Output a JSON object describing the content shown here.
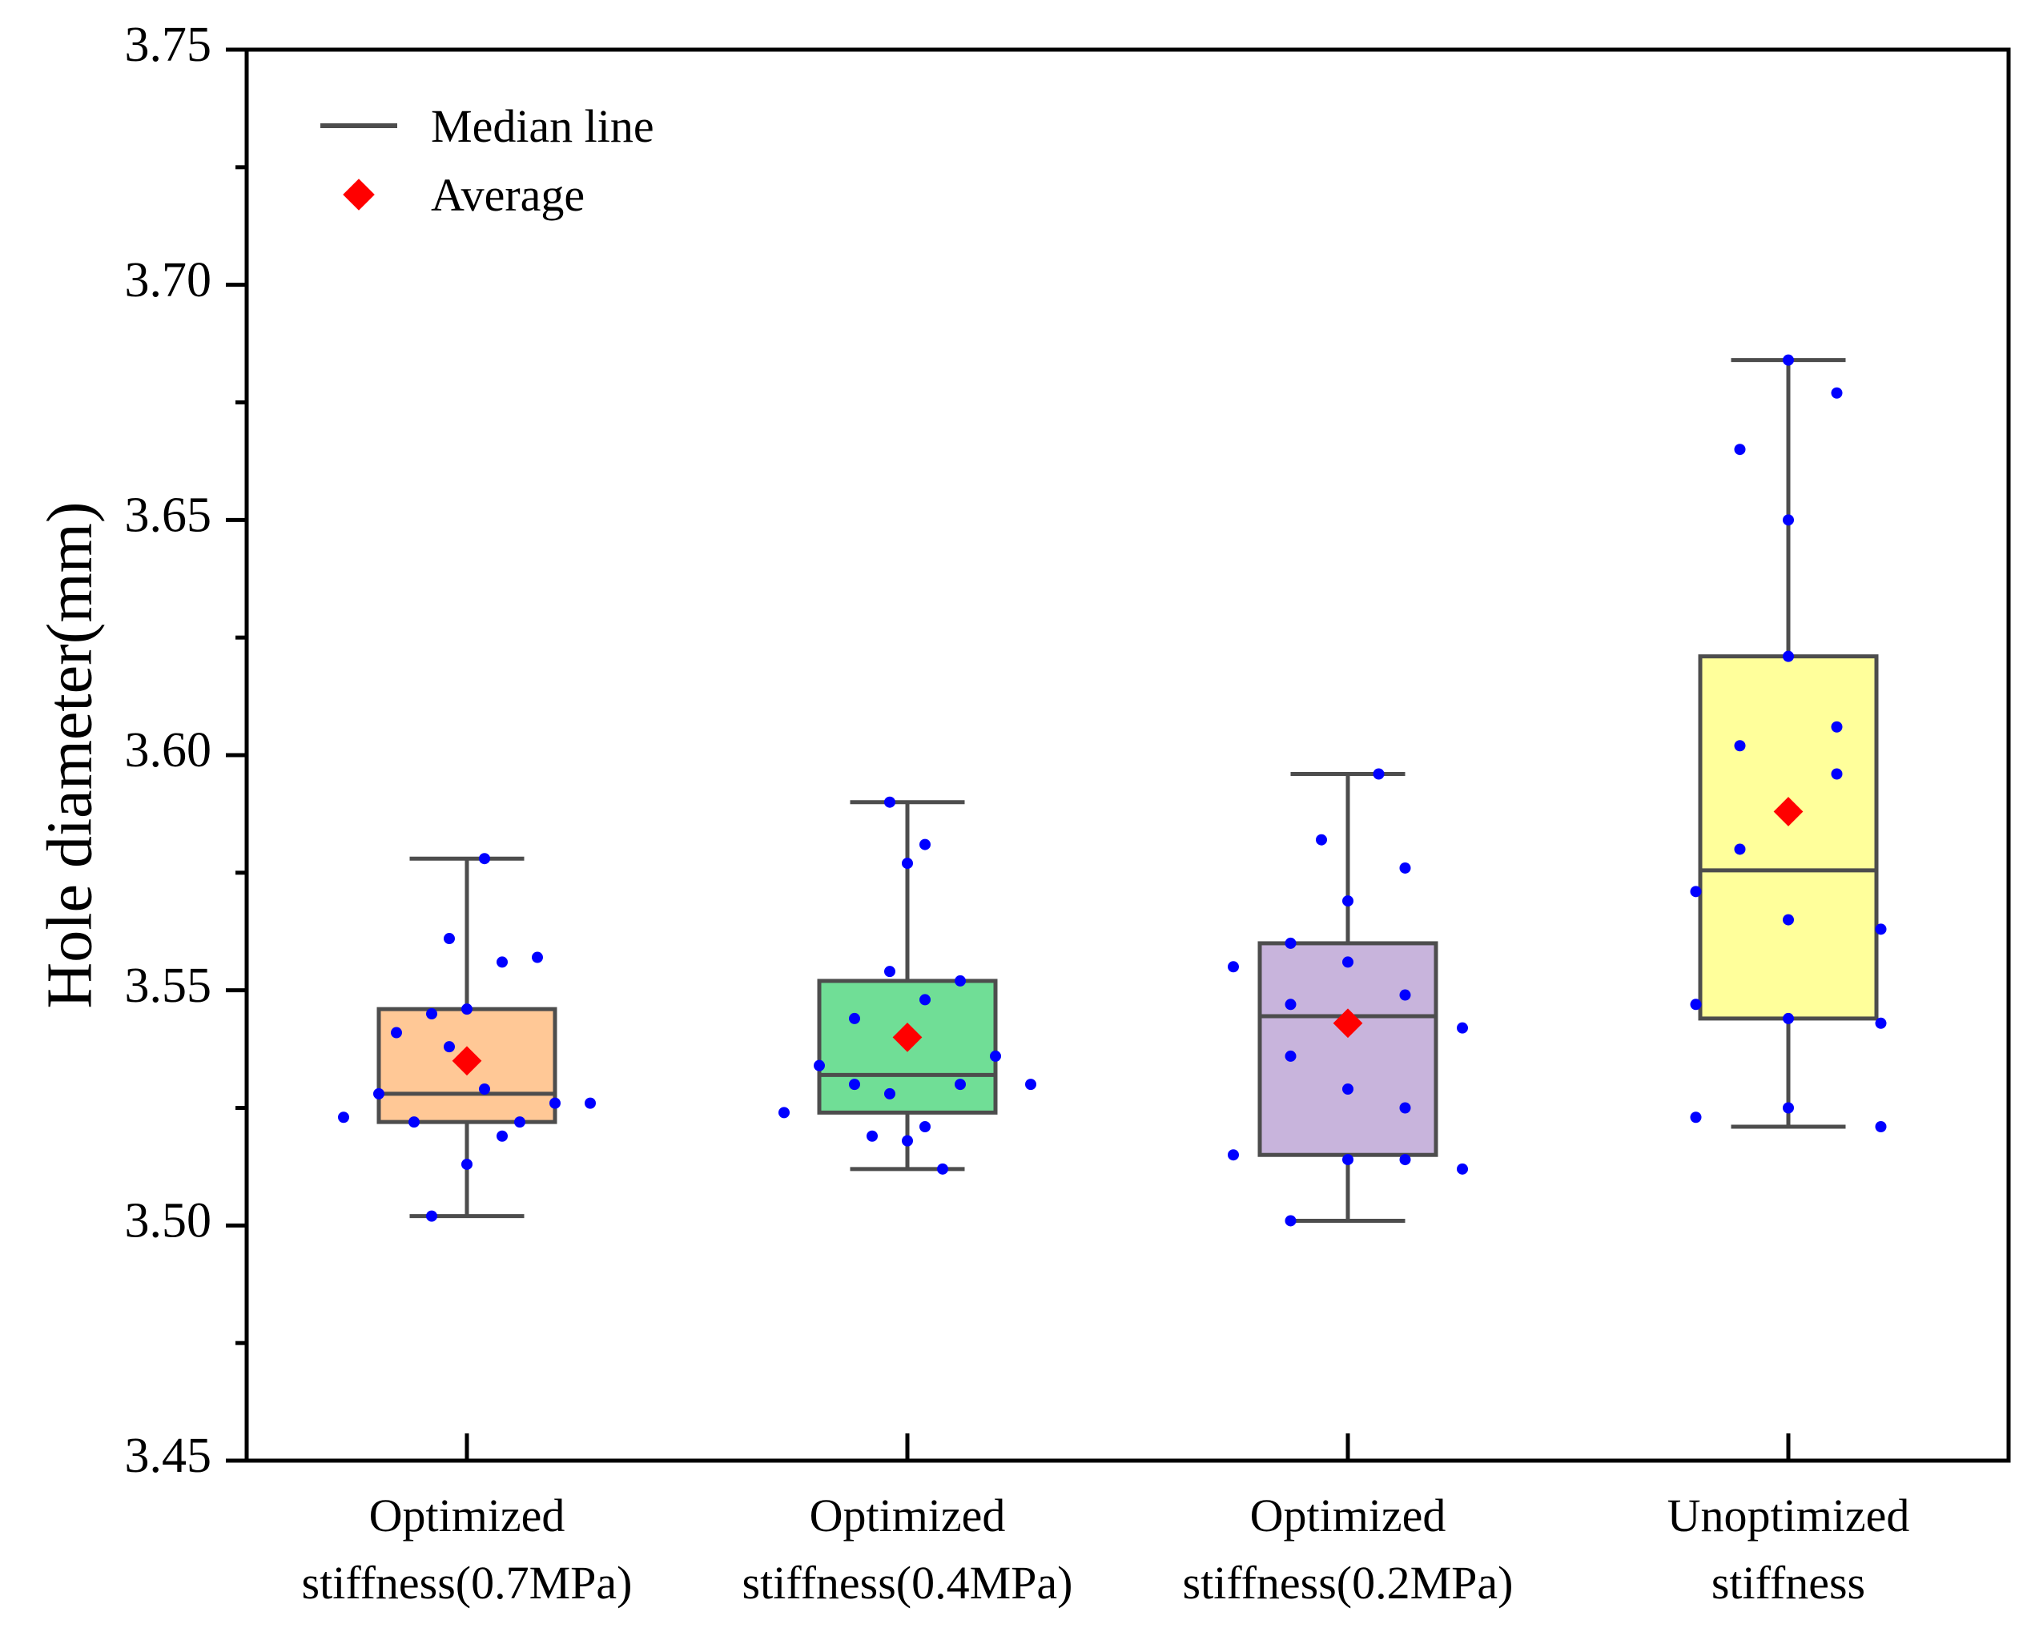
{
  "chart_data": {
    "type": "box",
    "title": "",
    "xlabel": "",
    "ylabel": "Hole diameter(mm)",
    "ylim": [
      3.45,
      3.75
    ],
    "yticks": [
      "3.45",
      "3.50",
      "3.55",
      "3.60",
      "3.65",
      "3.70",
      "3.75"
    ],
    "legend": {
      "position": "top-left",
      "median_label": "Median line",
      "average_label": "Average"
    },
    "colors": {
      "point": "#0000ff",
      "average": "#ff0000",
      "line": "#4d4d4d"
    },
    "groups": [
      {
        "label_line1": "Optimized",
        "label_line2": "stiffness(0.7MPa)",
        "fill": "#ffc896",
        "whisker_low": 3.502,
        "q1": 3.522,
        "median": 3.528,
        "q3": 3.546,
        "whisker_high": 3.578,
        "mean": 3.535,
        "points": [
          [
            -0.28,
            3.523
          ],
          [
            -0.2,
            3.528
          ],
          [
            -0.16,
            3.541
          ],
          [
            -0.12,
            3.522
          ],
          [
            -0.08,
            3.545
          ],
          [
            -0.08,
            3.502
          ],
          [
            -0.04,
            3.538
          ],
          [
            -0.04,
            3.561
          ],
          [
            0.0,
            3.546
          ],
          [
            0.0,
            3.513
          ],
          [
            0.04,
            3.529
          ],
          [
            0.04,
            3.578
          ],
          [
            0.08,
            3.556
          ],
          [
            0.08,
            3.519
          ],
          [
            0.12,
            3.522
          ],
          [
            0.16,
            3.557
          ],
          [
            0.2,
            3.526
          ],
          [
            0.28,
            3.526
          ]
        ]
      },
      {
        "label_line1": "Optimized",
        "label_line2": "stiffness(0.4MPa)",
        "fill": "#70de96",
        "whisker_low": 3.512,
        "q1": 3.524,
        "median": 3.532,
        "q3": 3.552,
        "whisker_high": 3.59,
        "mean": 3.54,
        "points": [
          [
            -0.28,
            3.524
          ],
          [
            -0.2,
            3.534
          ],
          [
            -0.12,
            3.544
          ],
          [
            -0.12,
            3.53
          ],
          [
            -0.08,
            3.519
          ],
          [
            -0.04,
            3.528
          ],
          [
            -0.04,
            3.554
          ],
          [
            -0.04,
            3.59
          ],
          [
            0.0,
            3.577
          ],
          [
            0.0,
            3.518
          ],
          [
            0.04,
            3.581
          ],
          [
            0.04,
            3.548
          ],
          [
            0.04,
            3.521
          ],
          [
            0.08,
            3.512
          ],
          [
            0.12,
            3.552
          ],
          [
            0.12,
            3.53
          ],
          [
            0.2,
            3.536
          ],
          [
            0.28,
            3.53
          ]
        ]
      },
      {
        "label_line1": "Optimized",
        "label_line2": "stiffness(0.2MPa)",
        "fill": "#c8b4dc",
        "whisker_low": 3.501,
        "q1": 3.515,
        "median": 3.5445,
        "q3": 3.56,
        "whisker_high": 3.596,
        "mean": 3.543,
        "points": [
          [
            -0.26,
            3.555
          ],
          [
            -0.26,
            3.515
          ],
          [
            -0.13,
            3.56
          ],
          [
            -0.13,
            3.547
          ],
          [
            -0.13,
            3.536
          ],
          [
            -0.13,
            3.501
          ],
          [
            -0.06,
            3.582
          ],
          [
            0.0,
            3.569
          ],
          [
            0.0,
            3.556
          ],
          [
            0.0,
            3.529
          ],
          [
            0.0,
            3.514
          ],
          [
            0.07,
            3.596
          ],
          [
            0.13,
            3.576
          ],
          [
            0.13,
            3.549
          ],
          [
            0.13,
            3.525
          ],
          [
            0.13,
            3.514
          ],
          [
            0.26,
            3.542
          ],
          [
            0.26,
            3.512
          ]
        ]
      },
      {
        "label_line1": "Unoptimized",
        "label_line2": "stiffness",
        "fill": "#ffff9b",
        "whisker_low": 3.521,
        "q1": 3.544,
        "median": 3.5755,
        "q3": 3.621,
        "whisker_high": 3.684,
        "mean": 3.588,
        "points": [
          [
            -0.21,
            3.571
          ],
          [
            -0.21,
            3.547
          ],
          [
            -0.21,
            3.523
          ],
          [
            -0.11,
            3.665
          ],
          [
            -0.11,
            3.602
          ],
          [
            -0.11,
            3.58
          ],
          [
            0.0,
            3.684
          ],
          [
            0.0,
            3.65
          ],
          [
            0.0,
            3.621
          ],
          [
            0.0,
            3.565
          ],
          [
            0.0,
            3.544
          ],
          [
            0.0,
            3.525
          ],
          [
            0.11,
            3.677
          ],
          [
            0.11,
            3.606
          ],
          [
            0.11,
            3.596
          ],
          [
            0.21,
            3.563
          ],
          [
            0.21,
            3.543
          ],
          [
            0.21,
            3.521
          ]
        ]
      }
    ]
  }
}
